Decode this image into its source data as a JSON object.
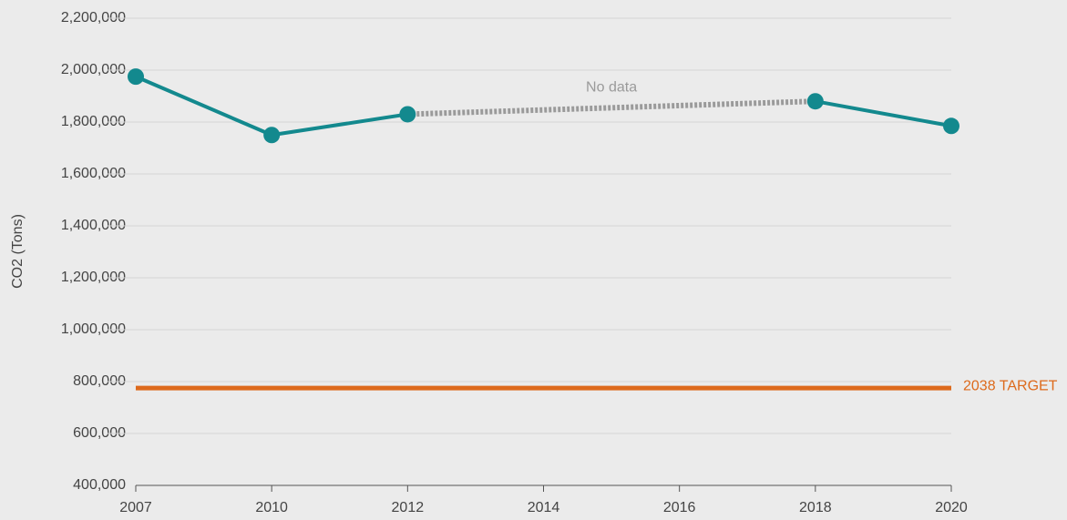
{
  "chart_data": {
    "type": "line",
    "y_label": "CO2 (Tons)",
    "categories": [
      "2007",
      "2010",
      "2012",
      "2014",
      "2016",
      "2018",
      "2020"
    ],
    "values": [
      1975000,
      1750000,
      1830000,
      null,
      null,
      1880000,
      1785000
    ],
    "color": "#13898e",
    "gap_color": "#9a9a9a",
    "annotation": "No data",
    "reference_line": {
      "label": "2038 TARGET",
      "value": 775000,
      "color": "#dd6a1c"
    },
    "ylim": [
      400000,
      2200000
    ],
    "yticks": [
      {
        "value": 400000,
        "label": "400,000"
      },
      {
        "value": 600000,
        "label": "600,000"
      },
      {
        "value": 800000,
        "label": "800,000"
      },
      {
        "value": 1000000,
        "label": "1,000,000"
      },
      {
        "value": 1200000,
        "label": "1,200,000"
      },
      {
        "value": 1400000,
        "label": "1,400,000"
      },
      {
        "value": 1600000,
        "label": "1,600,000"
      },
      {
        "value": 1800000,
        "label": "1,800,000"
      },
      {
        "value": 2000000,
        "label": "2,000,000"
      },
      {
        "value": 2200000,
        "label": "2,200,000"
      }
    ],
    "grid": true
  }
}
